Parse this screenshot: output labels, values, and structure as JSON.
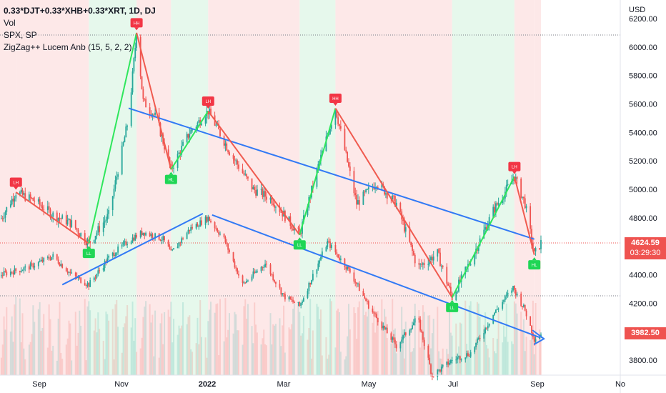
{
  "legend": {
    "main": "0.33*DJT+0.33*XHB+0.33*XRT, 1D, DJ",
    "vol": "Vol",
    "spx": "SPX, SP",
    "zigzag": "ZigZag++ Lucem Anb (15, 5, 2, 2)"
  },
  "price_badges": {
    "composite_price": "4624.59",
    "countdown": "03:29:30",
    "spx_price": "3982.50"
  },
  "colors": {
    "up": "#26a69a",
    "down": "#ef5350",
    "trend": "#3179f5",
    "zig_up": "#2ee65c",
    "zig_down": "#f05a4f",
    "band_green": "#e6f8ec",
    "band_red": "#fde8e8"
  },
  "chart_data": {
    "type": "line",
    "currency": "USD",
    "y_ticks": [
      "6200.00",
      "6000.00",
      "5800.00",
      "5600.00",
      "5400.00",
      "5200.00",
      "5000.00",
      "4800.00",
      "4600.00",
      "4400.00",
      "4200.00",
      "4000.00",
      "3800.00"
    ],
    "x_ticks": [
      "Sep",
      "Nov",
      "2022",
      "Mar",
      "May",
      "Jul",
      "Sep",
      "No"
    ],
    "ylim": [
      3730,
      6230
    ],
    "zigzag": {
      "points": [
        {
          "x": "2021-08-06",
          "y": 4980,
          "label": "LH"
        },
        {
          "x": "2021-09-30",
          "y": 4620,
          "label": "LL"
        },
        {
          "x": "2021-11-05",
          "y": 6100,
          "label": "HH"
        },
        {
          "x": "2021-12-01",
          "y": 5140,
          "label": "HL"
        },
        {
          "x": "2021-12-29",
          "y": 5550,
          "label": "LH"
        },
        {
          "x": "2022-03-08",
          "y": 4680,
          "label": "LL"
        },
        {
          "x": "2022-04-04",
          "y": 5570,
          "label": "HH"
        },
        {
          "x": "2022-07-01",
          "y": 4240,
          "label": "LL"
        },
        {
          "x": "2022-08-17",
          "y": 5090,
          "label": "LH"
        },
        {
          "x": "2022-09-01",
          "y": 4540,
          "label": "HL"
        }
      ]
    },
    "trendlines": [
      {
        "from": {
          "x": "2021-10-30",
          "y": 5570
        },
        "to": {
          "x": "2022-09-01",
          "y": 4650
        }
      },
      {
        "from": {
          "x": "2021-09-10",
          "y": 4330
        },
        "to": {
          "x": "2021-12-25",
          "y": 4830
        }
      },
      {
        "from": {
          "x": "2022-01-01",
          "y": 4820
        },
        "to": {
          "x": "2022-09-05",
          "y": 3960
        }
      }
    ],
    "series": [
      {
        "name": "0.33*DJT+0.33*XHB+0.33*XRT",
        "x": [
          "2021-07-25",
          "2021-08-06",
          "2021-08-20",
          "2021-09-03",
          "2021-09-17",
          "2021-09-30",
          "2021-10-15",
          "2021-10-30",
          "2021-11-05",
          "2021-11-10",
          "2021-11-20",
          "2021-12-01",
          "2021-12-15",
          "2021-12-29",
          "2022-01-15",
          "2022-02-01",
          "2022-02-15",
          "2022-03-08",
          "2022-03-20",
          "2022-04-04",
          "2022-04-20",
          "2022-05-05",
          "2022-05-20",
          "2022-06-05",
          "2022-06-20",
          "2022-07-01",
          "2022-07-15",
          "2022-08-01",
          "2022-08-17",
          "2022-08-25",
          "2022-09-01",
          "2022-09-06"
        ],
        "values": [
          4780,
          4980,
          4920,
          4820,
          4760,
          4620,
          4820,
          5500,
          6100,
          5620,
          5500,
          5140,
          5400,
          5550,
          5250,
          5000,
          4930,
          4680,
          5100,
          5570,
          4900,
          5050,
          4900,
          4450,
          4550,
          4240,
          4500,
          4850,
          5090,
          4900,
          4540,
          4625
        ]
      },
      {
        "name": "SPX",
        "x": [
          "2021-07-25",
          "2021-08-15",
          "2021-09-03",
          "2021-09-17",
          "2021-09-30",
          "2021-10-15",
          "2021-10-30",
          "2021-11-10",
          "2021-11-25",
          "2021-12-01",
          "2021-12-15",
          "2021-12-29",
          "2022-01-10",
          "2022-01-24",
          "2022-02-10",
          "2022-02-24",
          "2022-03-08",
          "2022-03-29",
          "2022-04-15",
          "2022-05-01",
          "2022-05-20",
          "2022-06-05",
          "2022-06-16",
          "2022-07-01",
          "2022-07-15",
          "2022-08-01",
          "2022-08-16",
          "2022-08-25",
          "2022-09-01",
          "2022-09-06"
        ],
        "values": [
          4400,
          4450,
          4530,
          4400,
          4330,
          4520,
          4640,
          4700,
          4650,
          4550,
          4720,
          4800,
          4650,
          4330,
          4480,
          4250,
          4180,
          4630,
          4420,
          4150,
          3900,
          4100,
          3690,
          3800,
          3850,
          4120,
          4310,
          4150,
          3950,
          3982.5
        ]
      }
    ]
  }
}
